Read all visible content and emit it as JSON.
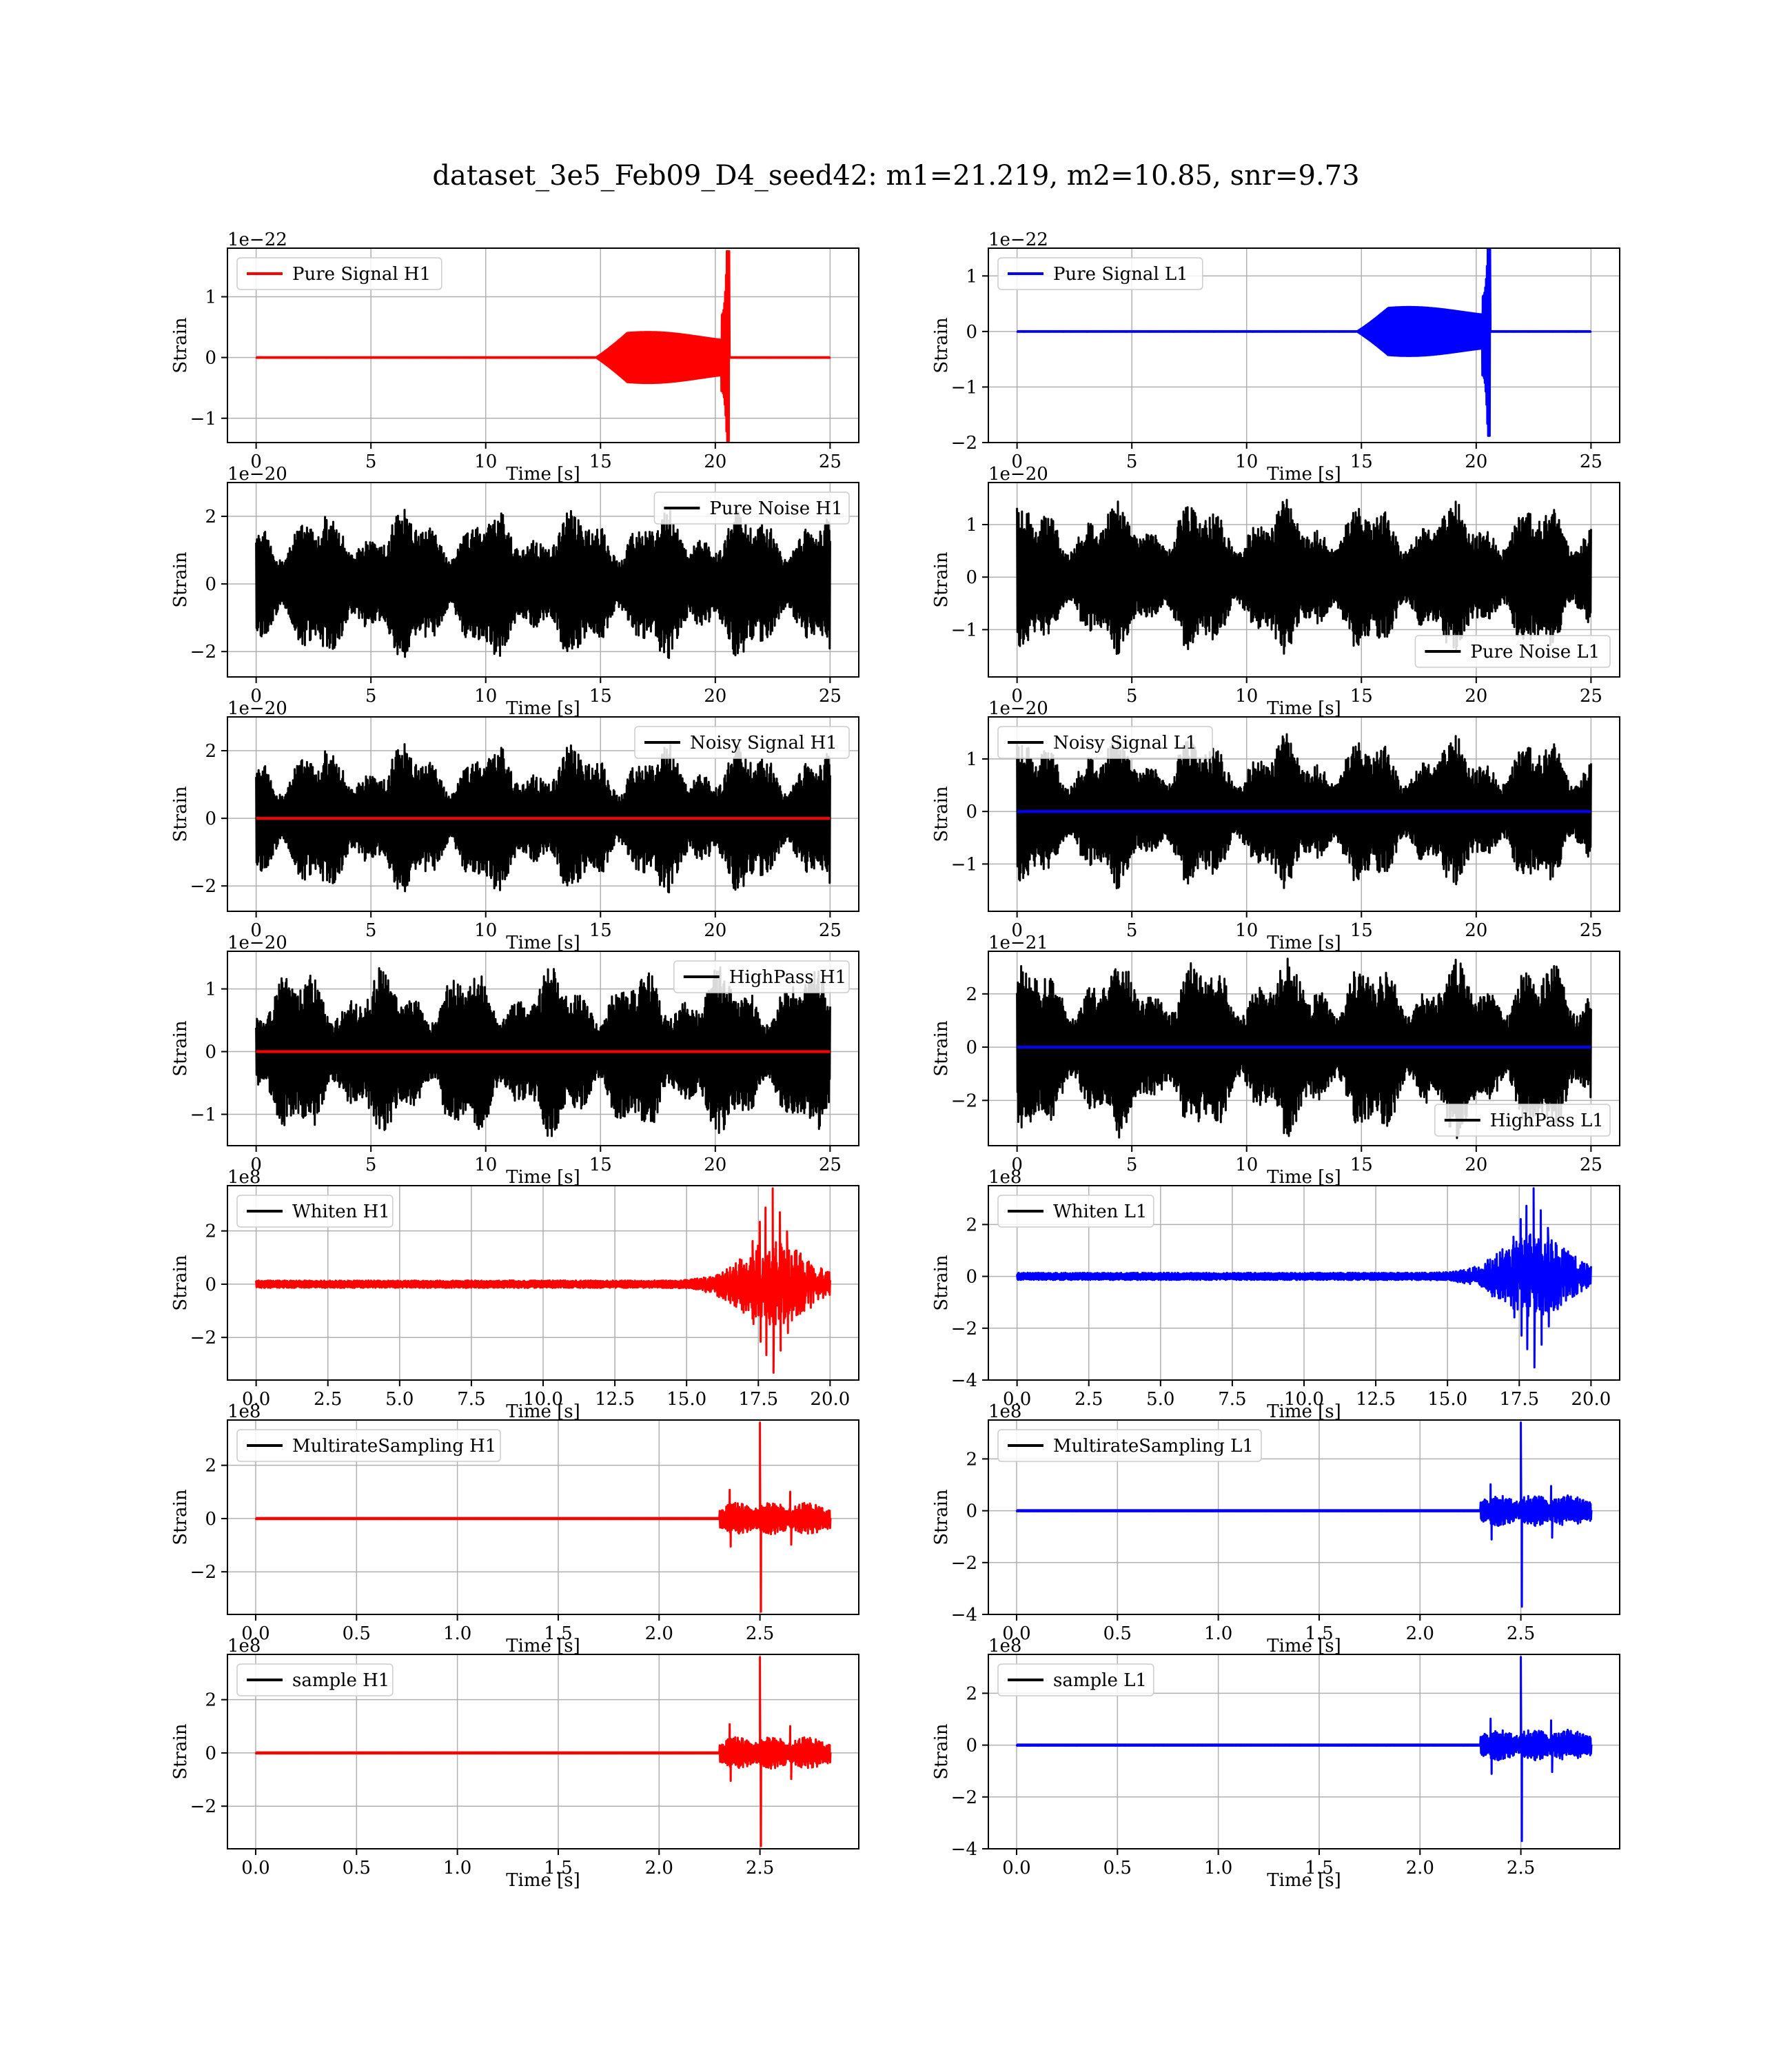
{
  "figure_title": "dataset_3e5_Feb09_D4_seed42: m1=21.219, m2=10.85, snr=9.73",
  "colors": {
    "signal_H1": "#ff0000",
    "signal_L1": "#0000ff",
    "noise": "#000000",
    "grid": "#b0b0b0"
  },
  "chart_data": [
    {
      "id": "h1-pure-signal",
      "type": "line",
      "xlabel": "Time [s]",
      "ylabel": "Strain",
      "exponent": "1e−22",
      "xlim": [
        -1.25,
        26.25
      ],
      "ylim": [
        -1.4,
        1.8
      ],
      "xticks": [
        0,
        5,
        10,
        15,
        20,
        25
      ],
      "yticks": [
        -1,
        0,
        1
      ],
      "legend": {
        "position": "upper-left",
        "entries": [
          {
            "label": "Pure Signal H1",
            "color": "#ff0000"
          }
        ]
      },
      "series": [
        {
          "name": "Pure Signal H1",
          "kind": "chirp",
          "color": "#ff0000",
          "x_end": 25,
          "start": 14.8,
          "merger": 20.5,
          "peak_pos": 1.75,
          "peak_neg": -1.38,
          "plateau": 0.4
        }
      ]
    },
    {
      "id": "l1-pure-signal",
      "type": "line",
      "xlabel": "Time [s]",
      "ylabel": "Strain",
      "exponent": "1e−22",
      "xlim": [
        -1.25,
        26.25
      ],
      "ylim": [
        -2.0,
        1.5
      ],
      "xticks": [
        0,
        5,
        10,
        15,
        20,
        25
      ],
      "yticks": [
        -2,
        -1,
        0,
        1
      ],
      "legend": {
        "position": "upper-left",
        "entries": [
          {
            "label": "Pure Signal L1",
            "color": "#0000ff"
          }
        ]
      },
      "series": [
        {
          "name": "Pure Signal L1",
          "kind": "chirp",
          "color": "#0000ff",
          "x_end": 25,
          "start": 14.8,
          "merger": 20.5,
          "peak_pos": 1.5,
          "peak_neg": -1.88,
          "plateau": 0.42
        }
      ]
    },
    {
      "id": "h1-pure-noise",
      "type": "line",
      "xlabel": "Time [s]",
      "ylabel": "Strain",
      "exponent": "1e−20",
      "xlim": [
        -1.25,
        26.25
      ],
      "ylim": [
        -2.75,
        3.0
      ],
      "xticks": [
        0,
        5,
        10,
        15,
        20,
        25
      ],
      "yticks": [
        -2,
        0,
        2
      ],
      "legend": {
        "position": "upper-right",
        "entries": [
          {
            "label": "Pure Noise H1",
            "color": "#000000"
          }
        ]
      },
      "series": [
        {
          "name": "Pure Noise H1",
          "kind": "noise",
          "color": "#000000",
          "x_end": 25,
          "amp": 2.0,
          "seed": 3
        }
      ]
    },
    {
      "id": "l1-pure-noise",
      "type": "line",
      "xlabel": "Time [s]",
      "ylabel": "Strain",
      "exponent": "1e−20",
      "xlim": [
        -1.25,
        26.25
      ],
      "ylim": [
        -1.9,
        1.8
      ],
      "xticks": [
        0,
        5,
        10,
        15,
        20,
        25
      ],
      "yticks": [
        -1,
        0,
        1
      ],
      "legend": {
        "position": "lower-right",
        "entries": [
          {
            "label": "Pure Noise L1",
            "color": "#000000"
          }
        ]
      },
      "series": [
        {
          "name": "Pure Noise L1",
          "kind": "noise",
          "color": "#000000",
          "x_end": 25,
          "amp": 1.3,
          "seed": 7
        }
      ]
    },
    {
      "id": "h1-noisy-signal",
      "type": "line",
      "xlabel": "Time [s]",
      "ylabel": "Strain",
      "exponent": "1e−20",
      "xlim": [
        -1.25,
        26.25
      ],
      "ylim": [
        -2.75,
        3.0
      ],
      "xticks": [
        0,
        5,
        10,
        15,
        20,
        25
      ],
      "yticks": [
        -2,
        0,
        2
      ],
      "legend": {
        "position": "upper-right",
        "entries": [
          {
            "label": "Noisy Signal H1",
            "color": "#000000"
          }
        ]
      },
      "series": [
        {
          "name": "Noisy Signal H1",
          "kind": "noise",
          "color": "#000000",
          "x_end": 25,
          "amp": 2.0,
          "seed": 3
        },
        {
          "kind": "flat",
          "color": "#ff0000",
          "x_end": 25,
          "value": 0
        }
      ]
    },
    {
      "id": "l1-noisy-signal",
      "type": "line",
      "xlabel": "Time [s]",
      "ylabel": "Strain",
      "exponent": "1e−20",
      "xlim": [
        -1.25,
        26.25
      ],
      "ylim": [
        -1.9,
        1.8
      ],
      "xticks": [
        0,
        5,
        10,
        15,
        20,
        25
      ],
      "yticks": [
        -1,
        0,
        1
      ],
      "legend": {
        "position": "upper-left",
        "entries": [
          {
            "label": "Noisy Signal L1",
            "color": "#000000"
          }
        ]
      },
      "series": [
        {
          "name": "Noisy Signal L1",
          "kind": "noise",
          "color": "#000000",
          "x_end": 25,
          "amp": 1.3,
          "seed": 7
        },
        {
          "kind": "flat",
          "color": "#0000ff",
          "x_end": 25,
          "value": 0
        }
      ]
    },
    {
      "id": "h1-highpass",
      "type": "line",
      "xlabel": "Time [s]",
      "ylabel": "Strain",
      "exponent": "1e−20",
      "xlim": [
        -1.25,
        26.25
      ],
      "ylim": [
        -1.5,
        1.6
      ],
      "xticks": [
        0,
        5,
        10,
        15,
        20,
        25
      ],
      "yticks": [
        -1,
        0,
        1
      ],
      "legend": {
        "position": "upper-right",
        "entries": [
          {
            "label": "HighPass H1",
            "color": "#000000"
          }
        ]
      },
      "series": [
        {
          "name": "HighPass H1",
          "kind": "noise",
          "color": "#000000",
          "x_end": 25,
          "amp": 1.2,
          "seed": 11
        },
        {
          "kind": "flat",
          "color": "#ff0000",
          "x_end": 25,
          "value": 0
        }
      ]
    },
    {
      "id": "l1-highpass",
      "type": "line",
      "xlabel": "Time [s]",
      "ylabel": "Strain",
      "exponent": "1e−21",
      "xlim": [
        -1.25,
        26.25
      ],
      "ylim": [
        -3.7,
        3.6
      ],
      "xticks": [
        0,
        5,
        10,
        15,
        20,
        25
      ],
      "yticks": [
        -2,
        0,
        2
      ],
      "legend": {
        "position": "lower-right",
        "entries": [
          {
            "label": "HighPass L1",
            "color": "#000000"
          }
        ]
      },
      "series": [
        {
          "name": "HighPass L1",
          "kind": "noise",
          "color": "#000000",
          "x_end": 25,
          "amp": 3.0,
          "seed": 13
        },
        {
          "kind": "flat",
          "color": "#0000ff",
          "x_end": 25,
          "value": 0
        }
      ]
    },
    {
      "id": "h1-whiten",
      "type": "line",
      "xlabel": "Time [s]",
      "ylabel": "Strain",
      "exponent": "1e8",
      "xlim": [
        -1.0,
        21.0
      ],
      "ylim": [
        -3.6,
        3.7
      ],
      "xticks": [
        0,
        2.5,
        5,
        7.5,
        10,
        12.5,
        15,
        17.5,
        20
      ],
      "xticklabels": [
        "0.0",
        "2.5",
        "5.0",
        "7.5",
        "10.0",
        "12.5",
        "15.0",
        "17.5",
        "20.0"
      ],
      "yticks": [
        -2,
        0,
        2
      ],
      "legend": {
        "position": "upper-left",
        "entries": [
          {
            "label": "Whiten H1",
            "color": "#000000"
          }
        ]
      },
      "series": [
        {
          "name": "Whiten H1",
          "kind": "whiten",
          "color": "#ff0000",
          "x_end": 20,
          "center": 18.0,
          "peak_pos": 3.6,
          "peak_neg": -3.5,
          "seed": 21
        }
      ]
    },
    {
      "id": "l1-whiten",
      "type": "line",
      "xlabel": "Time [s]",
      "ylabel": "Strain",
      "exponent": "1e8",
      "xlim": [
        -1.0,
        21.0
      ],
      "ylim": [
        -4.0,
        3.5
      ],
      "xticks": [
        0,
        2.5,
        5,
        7.5,
        10,
        12.5,
        15,
        17.5,
        20
      ],
      "xticklabels": [
        "0.0",
        "2.5",
        "5.0",
        "7.5",
        "10.0",
        "12.5",
        "15.0",
        "17.5",
        "20.0"
      ],
      "yticks": [
        -4,
        -2,
        0,
        2
      ],
      "legend": {
        "position": "upper-left",
        "entries": [
          {
            "label": "Whiten L1",
            "color": "#000000"
          }
        ]
      },
      "series": [
        {
          "name": "Whiten L1",
          "kind": "whiten",
          "color": "#0000ff",
          "x_end": 20,
          "center": 18.0,
          "peak_pos": 3.4,
          "peak_neg": -3.7,
          "seed": 23
        }
      ]
    },
    {
      "id": "h1-multirate",
      "type": "line",
      "xlabel": "Time [s]",
      "ylabel": "Strain",
      "exponent": "1e8",
      "xlim": [
        -0.14,
        2.99
      ],
      "ylim": [
        -3.6,
        3.7
      ],
      "xticks": [
        0,
        0.5,
        1,
        1.5,
        2,
        2.5
      ],
      "xticklabels": [
        "0.0",
        "0.5",
        "1.0",
        "1.5",
        "2.0",
        "2.5"
      ],
      "yticks": [
        -2,
        0,
        2
      ],
      "legend": {
        "position": "upper-left",
        "entries": [
          {
            "label": "MultirateSampling H1",
            "color": "#000000"
          }
        ]
      },
      "series": [
        {
          "name": "MultirateSampling H1",
          "kind": "burst",
          "color": "#ff0000",
          "x_end": 2.85,
          "start": 2.3,
          "merger": 2.5,
          "peak_pos": 3.6,
          "peak_neg": -3.5,
          "seed": 31
        }
      ]
    },
    {
      "id": "l1-multirate",
      "type": "line",
      "xlabel": "Time [s]",
      "ylabel": "Strain",
      "exponent": "1e8",
      "xlim": [
        -0.14,
        2.99
      ],
      "ylim": [
        -4.0,
        3.5
      ],
      "xticks": [
        0,
        0.5,
        1,
        1.5,
        2,
        2.5
      ],
      "xticklabels": [
        "0.0",
        "0.5",
        "1.0",
        "1.5",
        "2.0",
        "2.5"
      ],
      "yticks": [
        -4,
        -2,
        0,
        2
      ],
      "legend": {
        "position": "upper-left",
        "entries": [
          {
            "label": "MultirateSampling L1",
            "color": "#000000"
          }
        ]
      },
      "series": [
        {
          "name": "MultirateSampling L1",
          "kind": "burst",
          "color": "#0000ff",
          "x_end": 2.85,
          "start": 2.3,
          "merger": 2.5,
          "peak_pos": 3.4,
          "peak_neg": -3.7,
          "seed": 33
        }
      ]
    },
    {
      "id": "h1-sample",
      "type": "line",
      "xlabel": "Time [s]",
      "ylabel": "Strain",
      "exponent": "1e8",
      "xlim": [
        -0.14,
        2.99
      ],
      "ylim": [
        -3.6,
        3.7
      ],
      "xticks": [
        0,
        0.5,
        1,
        1.5,
        2,
        2.5
      ],
      "xticklabels": [
        "0.0",
        "0.5",
        "1.0",
        "1.5",
        "2.0",
        "2.5"
      ],
      "yticks": [
        -2,
        0,
        2
      ],
      "legend": {
        "position": "upper-left",
        "entries": [
          {
            "label": "sample H1",
            "color": "#000000"
          }
        ]
      },
      "series": [
        {
          "name": "sample H1",
          "kind": "burst",
          "color": "#ff0000",
          "x_end": 2.85,
          "start": 2.3,
          "merger": 2.5,
          "peak_pos": 3.6,
          "peak_neg": -3.5,
          "seed": 31
        }
      ]
    },
    {
      "id": "l1-sample",
      "type": "line",
      "xlabel": "Time [s]",
      "ylabel": "Strain",
      "exponent": "1e8",
      "xlim": [
        -0.14,
        2.99
      ],
      "ylim": [
        -4.0,
        3.5
      ],
      "xticks": [
        0,
        0.5,
        1,
        1.5,
        2,
        2.5
      ],
      "xticklabels": [
        "0.0",
        "0.5",
        "1.0",
        "1.5",
        "2.0",
        "2.5"
      ],
      "yticks": [
        -4,
        -2,
        0,
        2
      ],
      "legend": {
        "position": "upper-left",
        "entries": [
          {
            "label": "sample L1",
            "color": "#000000"
          }
        ]
      },
      "series": [
        {
          "name": "sample L1",
          "kind": "burst",
          "color": "#0000ff",
          "x_end": 2.85,
          "start": 2.3,
          "merger": 2.5,
          "peak_pos": 3.4,
          "peak_neg": -3.7,
          "seed": 33
        }
      ]
    }
  ]
}
